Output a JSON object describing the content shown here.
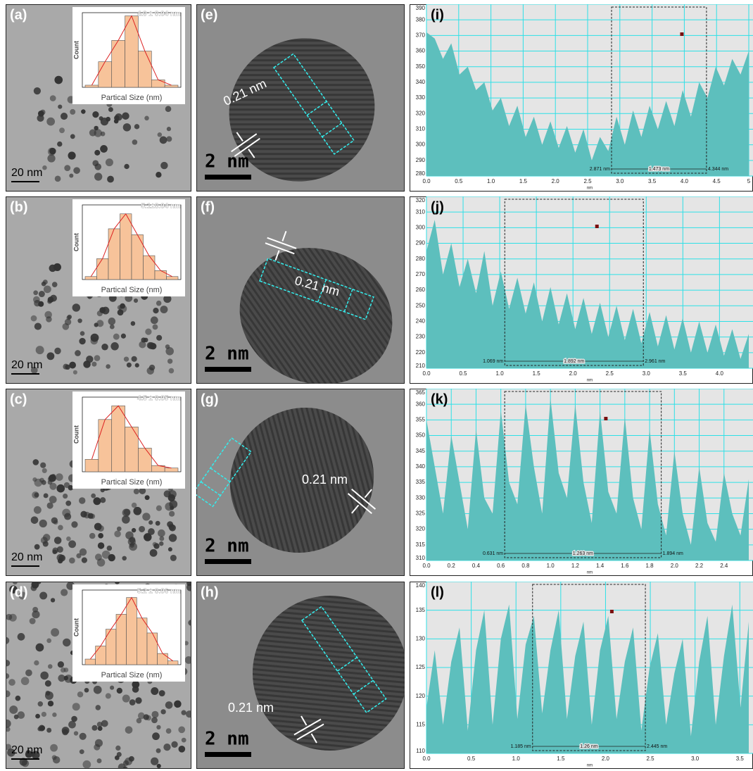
{
  "panels": {
    "tem": [
      {
        "label": "(a)",
        "scale": "20 nm",
        "size": "4.9 ± 0.04 nm",
        "xlabel": "Partical Size (nm)",
        "ylabel": "Count",
        "counts": [
          2,
          24,
          44,
          67,
          34,
          7,
          2
        ],
        "ylim": [
          0,
          70
        ]
      },
      {
        "label": "(b)",
        "scale": "20 nm",
        "size": "5.1±0.04 nm",
        "xlabel": "Partical Size (nm)",
        "ylabel": "Count",
        "counts": [
          2,
          14,
          34,
          44,
          30,
          16,
          6,
          2
        ],
        "ylim": [
          0,
          50
        ]
      },
      {
        "label": "(c)",
        "scale": "20 nm",
        "size": "4.5 ± 0.05 nm",
        "xlabel": "Partical Size (nm)",
        "ylabel": "Count",
        "counts": [
          10,
          42,
          53,
          36,
          19,
          5,
          3
        ],
        "ylim": [
          0,
          60
        ]
      },
      {
        "label": "(d)",
        "scale": "20 nm",
        "size": "5.2 ± 0.06 nm",
        "xlabel": "Partical Size (nm)",
        "ylabel": "Count",
        "counts": [
          3,
          10,
          19,
          27,
          36,
          25,
          17,
          6,
          2
        ],
        "ylim": [
          0,
          40
        ]
      }
    ],
    "hrtem": [
      {
        "label": "(e)",
        "spacing": "0.21 nm",
        "scale": "2 nm"
      },
      {
        "label": "(f)",
        "spacing": "0.21 nm",
        "scale": "2 nm"
      },
      {
        "label": "(g)",
        "spacing": "0.21 nm",
        "scale": "2 nm"
      },
      {
        "label": "(h)",
        "spacing": "0.21 nm",
        "scale": "2 nm"
      }
    ],
    "profiles": [
      {
        "label": "(i)",
        "xunit": "nm",
        "xlim": [
          0,
          5
        ],
        "ylim": [
          280,
          390
        ],
        "xticks": [
          {
            "value": 0,
            "label": "0.0"
          },
          0.5,
          {
            "value": 1,
            "label": "1.0"
          },
          1.5,
          {
            "value": 2,
            "label": "2.0"
          },
          2.5,
          {
            "value": 3,
            "label": "3.0"
          },
          3.5,
          {
            "value": 4,
            "label": "4.0"
          },
          4.5,
          5
        ],
        "yticks": [
          280,
          290,
          300,
          310,
          320,
          330,
          340,
          350,
          360,
          370,
          380,
          390
        ],
        "measure": [
          {
            "value": 2.871,
            "label": "2.871 nm"
          },
          {
            "value": 1.473,
            "label": "1.473 nm"
          },
          {
            "value": 4.344,
            "label": "4.344 nm"
          }
        ],
        "values": [
          372,
          368,
          355,
          365,
          345,
          350,
          335,
          340,
          322,
          330,
          312,
          325,
          305,
          318,
          300,
          315,
          298,
          312,
          295,
          310,
          290,
          305,
          296,
          318,
          300,
          322,
          305,
          325,
          310,
          328,
          312,
          335,
          318,
          340,
          330,
          350,
          338,
          355,
          345,
          360
        ]
      },
      {
        "label": "(j)",
        "xunit": "nm",
        "xlim": [
          0,
          4.4
        ],
        "ylim": [
          210,
          320
        ],
        "xticks": [
          {
            "value": 0,
            "label": "0.0"
          },
          0.5,
          {
            "value": 1,
            "label": "1.0"
          },
          1.5,
          {
            "value": 2,
            "label": "2.0"
          },
          2.5,
          {
            "value": 3,
            "label": "3.0"
          },
          3.5,
          {
            "value": 4,
            "label": "4.0"
          }
        ],
        "yticks": [
          210,
          220,
          230,
          240,
          250,
          260,
          270,
          280,
          290,
          300,
          310,
          320
        ],
        "measure": [
          {
            "value": 1.069,
            "label": "1.069 nm"
          },
          {
            "value": 1.892,
            "label": "1.892 nm"
          },
          {
            "value": 2.961,
            "label": "2.961 nm"
          }
        ],
        "values": [
          285,
          305,
          270,
          290,
          262,
          280,
          258,
          285,
          250,
          272,
          248,
          268,
          245,
          265,
          240,
          262,
          238,
          258,
          235,
          255,
          232,
          252,
          230,
          250,
          228,
          248,
          226,
          246,
          224,
          244,
          222,
          242,
          220,
          240,
          220,
          238,
          218,
          235,
          216,
          232
        ]
      },
      {
        "label": "(k)",
        "xunit": "nm",
        "xlim": [
          0,
          2.6
        ],
        "ylim": [
          310,
          365
        ],
        "xticks": [
          {
            "value": 0,
            "label": "0.0"
          },
          0.2,
          0.4,
          0.6,
          0.8,
          {
            "value": 1,
            "label": "1.0"
          },
          1.2,
          1.4,
          1.6,
          1.8,
          {
            "value": 2,
            "label": "2.0"
          },
          2.2,
          2.4
        ],
        "yticks": [
          310,
          315,
          320,
          325,
          330,
          335,
          340,
          345,
          350,
          355,
          360,
          365
        ],
        "measure": [
          {
            "value": 0.631,
            "label": "0.631 nm"
          },
          {
            "value": 1.263,
            "label": "1.263 nm"
          },
          {
            "value": 1.894,
            "label": "1.894 nm"
          }
        ],
        "values": [
          355,
          340,
          325,
          350,
          335,
          320,
          352,
          330,
          325,
          358,
          335,
          328,
          360,
          340,
          325,
          362,
          338,
          330,
          360,
          335,
          322,
          358,
          332,
          325,
          356,
          330,
          320,
          352,
          328,
          318,
          345,
          325,
          315,
          340,
          322,
          316,
          338,
          325,
          318,
          336
        ]
      },
      {
        "label": "(l)",
        "xunit": "nm",
        "xlim": [
          0,
          3.6
        ],
        "ylim": [
          110,
          140
        ],
        "xticks": [
          {
            "value": 0,
            "label": "0.0"
          },
          0.5,
          {
            "value": 1,
            "label": "1.0"
          },
          1.5,
          {
            "value": 2,
            "label": "2.0"
          },
          2.5,
          {
            "value": 3,
            "label": "3.0"
          },
          3.5
        ],
        "yticks": [
          110,
          115,
          120,
          125,
          130,
          135,
          140
        ],
        "measure": [
          {
            "value": 1.185,
            "label": "1.185 nm"
          },
          {
            "value": 1.26,
            "label": "1.26 nm"
          },
          {
            "value": 2.445,
            "label": "2.445 nm"
          }
        ],
        "values": [
          118,
          128,
          115,
          126,
          132,
          114,
          128,
          135,
          115,
          130,
          136,
          116,
          129,
          134,
          117,
          128,
          135,
          116,
          127,
          133,
          115,
          128,
          134,
          116,
          126,
          132,
          114,
          125,
          131,
          115,
          124,
          130,
          113,
          126,
          134,
          115,
          127,
          136,
          118,
          133
        ]
      }
    ]
  }
}
